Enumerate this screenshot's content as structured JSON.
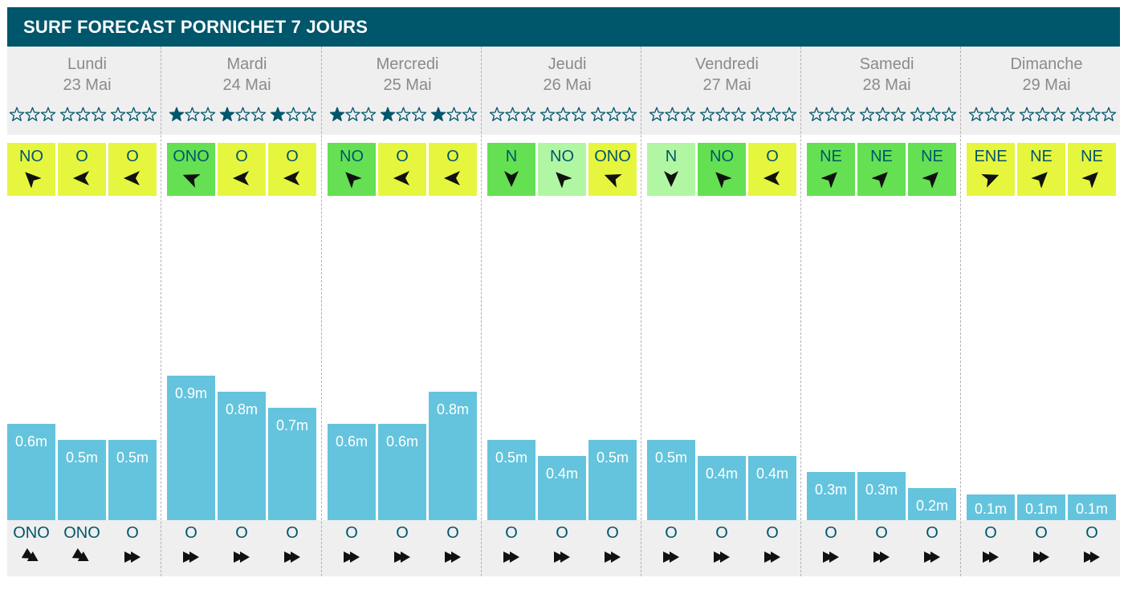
{
  "title": "SURF FORECAST PORNICHET 7 JOURS",
  "colors": {
    "header_bg": "#00566b",
    "panel_bg": "#efefef",
    "wave_bar": "#64c4dd",
    "label_text": "#00566b",
    "wind_yellow": "#e6f63f",
    "wind_green": "#65e052",
    "wind_light_green": "#b1f7a3",
    "star": "#00566b"
  },
  "chart_data": {
    "type": "bar",
    "title": "SURF FORECAST PORNICHET 7 JOURS",
    "unit": "m",
    "ylim": [
      0,
      1.0
    ],
    "days": [
      {
        "name": "Lundi",
        "date": "23 Mai",
        "slots": [
          {
            "stars": 0,
            "wind": "NO",
            "wind_color": "yellow",
            "wave": 0.6,
            "wave_label": "0.6m",
            "swell": "ONO"
          },
          {
            "stars": 0,
            "wind": "O",
            "wind_color": "yellow",
            "wave": 0.5,
            "wave_label": "0.5m",
            "swell": "ONO"
          },
          {
            "stars": 0,
            "wind": "O",
            "wind_color": "yellow",
            "wave": 0.5,
            "wave_label": "0.5m",
            "swell": "O"
          }
        ]
      },
      {
        "name": "Mardi",
        "date": "24 Mai",
        "slots": [
          {
            "stars": 1,
            "wind": "ONO",
            "wind_color": "green",
            "wave": 0.9,
            "wave_label": "0.9m",
            "swell": "O"
          },
          {
            "stars": 1,
            "wind": "O",
            "wind_color": "yellow",
            "wave": 0.8,
            "wave_label": "0.8m",
            "swell": "O"
          },
          {
            "stars": 1,
            "wind": "O",
            "wind_color": "yellow",
            "wave": 0.7,
            "wave_label": "0.7m",
            "swell": "O"
          }
        ]
      },
      {
        "name": "Mercredi",
        "date": "25 Mai",
        "slots": [
          {
            "stars": 1,
            "wind": "NO",
            "wind_color": "green",
            "wave": 0.6,
            "wave_label": "0.6m",
            "swell": "O"
          },
          {
            "stars": 1,
            "wind": "O",
            "wind_color": "yellow",
            "wave": 0.6,
            "wave_label": "0.6m",
            "swell": "O"
          },
          {
            "stars": 1,
            "wind": "O",
            "wind_color": "yellow",
            "wave": 0.8,
            "wave_label": "0.8m",
            "swell": "O"
          }
        ]
      },
      {
        "name": "Jeudi",
        "date": "26 Mai",
        "slots": [
          {
            "stars": 0,
            "wind": "N",
            "wind_color": "green",
            "wave": 0.5,
            "wave_label": "0.5m",
            "swell": "O"
          },
          {
            "stars": 0,
            "wind": "NO",
            "wind_color": "light_green",
            "wave": 0.4,
            "wave_label": "0.4m",
            "swell": "O"
          },
          {
            "stars": 0,
            "wind": "ONO",
            "wind_color": "yellow",
            "wave": 0.5,
            "wave_label": "0.5m",
            "swell": "O"
          }
        ]
      },
      {
        "name": "Vendredi",
        "date": "27 Mai",
        "slots": [
          {
            "stars": 0,
            "wind": "N",
            "wind_color": "light_green",
            "wave": 0.5,
            "wave_label": "0.5m",
            "swell": "O"
          },
          {
            "stars": 0,
            "wind": "NO",
            "wind_color": "green",
            "wave": 0.4,
            "wave_label": "0.4m",
            "swell": "O"
          },
          {
            "stars": 0,
            "wind": "O",
            "wind_color": "yellow",
            "wave": 0.4,
            "wave_label": "0.4m",
            "swell": "O"
          }
        ]
      },
      {
        "name": "Samedi",
        "date": "28 Mai",
        "slots": [
          {
            "stars": 0,
            "wind": "NE",
            "wind_color": "green",
            "wave": 0.3,
            "wave_label": "0.3m",
            "swell": "O"
          },
          {
            "stars": 0,
            "wind": "NE",
            "wind_color": "green",
            "wave": 0.3,
            "wave_label": "0.3m",
            "swell": "O"
          },
          {
            "stars": 0,
            "wind": "NE",
            "wind_color": "green",
            "wave": 0.2,
            "wave_label": "0.2m",
            "swell": "O"
          }
        ]
      },
      {
        "name": "Dimanche",
        "date": "29 Mai",
        "slots": [
          {
            "stars": 0,
            "wind": "ENE",
            "wind_color": "yellow",
            "wave": 0.1,
            "wave_label": "0.1m",
            "swell": "O"
          },
          {
            "stars": 0,
            "wind": "NE",
            "wind_color": "yellow",
            "wave": 0.1,
            "wave_label": "0.1m",
            "swell": "O"
          },
          {
            "stars": 0,
            "wind": "NE",
            "wind_color": "yellow",
            "wave": 0.1,
            "wave_label": "0.1m",
            "swell": "O"
          }
        ]
      }
    ]
  }
}
